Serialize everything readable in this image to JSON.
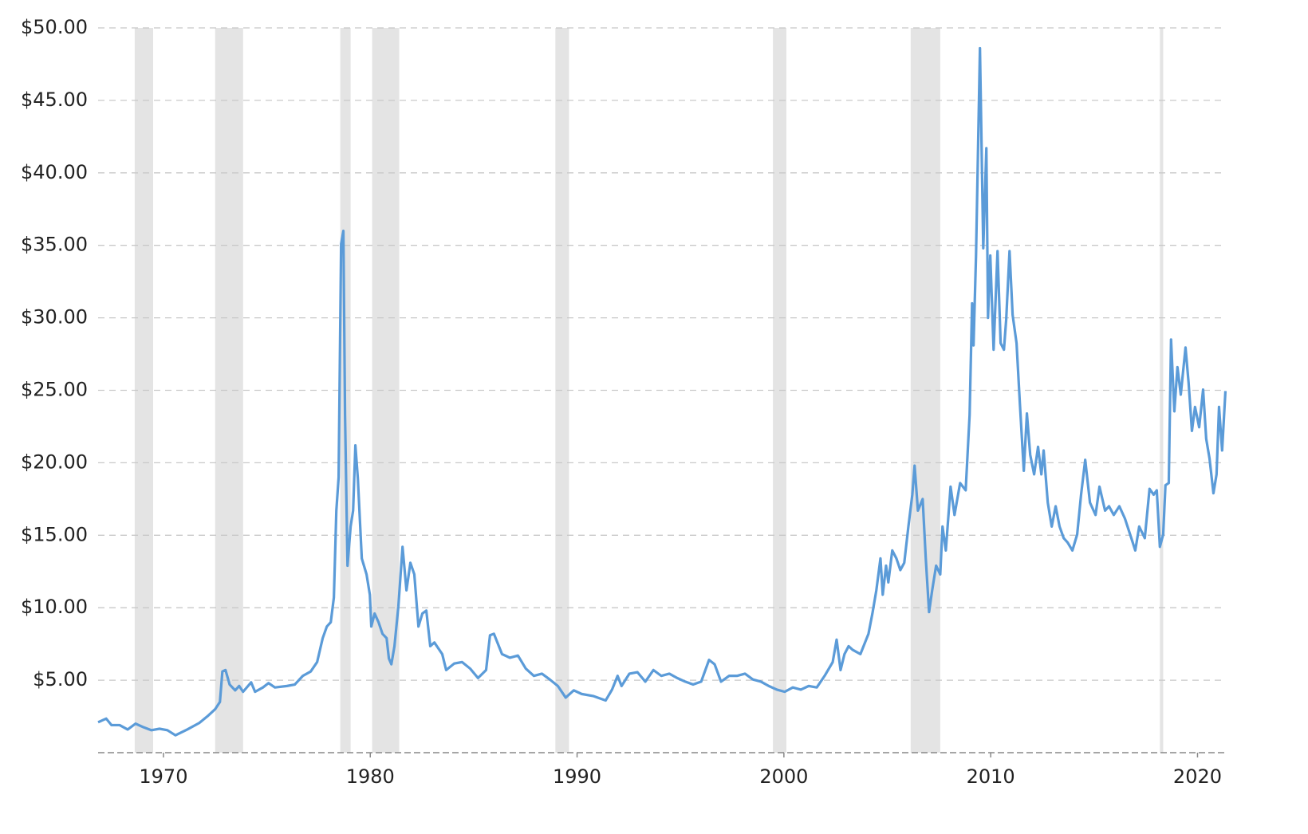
{
  "chart_data": {
    "type": "line",
    "color": "#5b9bd8",
    "band_color": "#e4e4e4",
    "grid": true,
    "xlim": [
      1966.84,
      2021.37
    ],
    "ylim": [
      0,
      50
    ],
    "xticks": [
      1970,
      1980,
      1990,
      2000,
      2010,
      2020
    ],
    "yticks": [
      {
        "value": 5,
        "label": "$5.00"
      },
      {
        "value": 10,
        "label": "$10.00"
      },
      {
        "value": 15,
        "label": "$15.00"
      },
      {
        "value": 20,
        "label": "$20.00"
      },
      {
        "value": 25,
        "label": "$25.00"
      },
      {
        "value": 30,
        "label": "$30.00"
      },
      {
        "value": 35,
        "label": "$35.00"
      },
      {
        "value": 40,
        "label": "$40.00"
      },
      {
        "value": 45,
        "label": "$45.00"
      },
      {
        "value": 50,
        "label": "$50.00"
      }
    ],
    "shaded_ranges": [
      [
        1968.61,
        1969.5
      ],
      [
        1972.5,
        1973.85
      ],
      [
        1978.55,
        1979.05
      ],
      [
        1980.09,
        1981.4
      ],
      [
        1988.95,
        1989.61
      ],
      [
        1999.47,
        2000.12
      ],
      [
        2006.13,
        2007.56
      ],
      [
        2018.18,
        2018.34
      ]
    ],
    "x": [
      1966.84,
      1967.23,
      1967.49,
      1967.88,
      1968.27,
      1968.65,
      1969.04,
      1969.42,
      1969.81,
      1970.19,
      1970.58,
      1971.15,
      1971.73,
      1972.12,
      1972.5,
      1972.73,
      1972.85,
      1973.0,
      1973.2,
      1973.47,
      1973.66,
      1973.85,
      1974.24,
      1974.43,
      1974.81,
      1975.08,
      1975.39,
      1975.97,
      1976.35,
      1976.74,
      1977.12,
      1977.43,
      1977.7,
      1977.9,
      1978.09,
      1978.24,
      1978.36,
      1978.47,
      1978.59,
      1978.7,
      1978.78,
      1978.9,
      1979.05,
      1979.17,
      1979.28,
      1979.4,
      1979.59,
      1979.82,
      1979.98,
      1980.05,
      1980.21,
      1980.4,
      1980.59,
      1980.79,
      1980.9,
      1981.02,
      1981.17,
      1981.36,
      1981.56,
      1981.75,
      1981.94,
      1982.13,
      1982.33,
      1982.52,
      1982.71,
      1982.9,
      1983.1,
      1983.48,
      1983.67,
      1984.06,
      1984.44,
      1984.83,
      1985.21,
      1985.6,
      1985.79,
      1985.98,
      1986.37,
      1986.75,
      1987.14,
      1987.52,
      1987.91,
      1988.3,
      1988.68,
      1989.07,
      1989.45,
      1989.84,
      1990.22,
      1990.8,
      1991.38,
      1991.69,
      1991.96,
      1992.15,
      1992.53,
      1992.92,
      1993.3,
      1993.69,
      1994.07,
      1994.46,
      1994.84,
      1995.23,
      1995.61,
      1996.0,
      1996.38,
      1996.65,
      1996.96,
      1997.35,
      1997.73,
      1998.12,
      1998.5,
      1998.89,
      1999.27,
      1999.66,
      2000.04,
      2000.43,
      2000.82,
      2001.2,
      2001.59,
      2001.97,
      2002.36,
      2002.55,
      2002.74,
      2002.93,
      2003.13,
      2003.32,
      2003.7,
      2004.09,
      2004.28,
      2004.47,
      2004.67,
      2004.78,
      2004.94,
      2005.05,
      2005.24,
      2005.44,
      2005.63,
      2005.82,
      2006.02,
      2006.21,
      2006.32,
      2006.48,
      2006.71,
      2006.86,
      2007.02,
      2007.17,
      2007.36,
      2007.56,
      2007.67,
      2007.83,
      2008.06,
      2008.25,
      2008.52,
      2008.79,
      2008.98,
      2009.1,
      2009.17,
      2009.29,
      2009.48,
      2009.64,
      2009.79,
      2009.87,
      2009.98,
      2010.14,
      2010.33,
      2010.48,
      2010.64,
      2010.75,
      2010.91,
      2011.06,
      2011.25,
      2011.41,
      2011.6,
      2011.75,
      2011.91,
      2012.1,
      2012.29,
      2012.45,
      2012.56,
      2012.76,
      2012.95,
      2013.14,
      2013.33,
      2013.53,
      2013.72,
      2013.95,
      2014.18,
      2014.37,
      2014.57,
      2014.8,
      2015.07,
      2015.26,
      2015.53,
      2015.72,
      2015.95,
      2016.22,
      2016.49,
      2016.8,
      2016.99,
      2017.18,
      2017.45,
      2017.68,
      2017.88,
      2018.03,
      2018.18,
      2018.34,
      2018.45,
      2018.61,
      2018.72,
      2018.88,
      2019.03,
      2019.19,
      2019.42,
      2019.57,
      2019.73,
      2019.88,
      2020.08,
      2020.27,
      2020.42,
      2020.58,
      2020.77,
      2020.92,
      2021.04,
      2021.19,
      2021.35
    ],
    "values": [
      2.1,
      2.35,
      1.9,
      1.9,
      1.6,
      2.0,
      1.75,
      1.55,
      1.65,
      1.55,
      1.2,
      1.6,
      2.05,
      2.5,
      3.0,
      3.5,
      5.6,
      5.7,
      4.7,
      4.3,
      4.6,
      4.2,
      4.85,
      4.2,
      4.5,
      4.8,
      4.5,
      4.6,
      4.7,
      5.3,
      5.6,
      6.25,
      7.9,
      8.7,
      9.0,
      10.7,
      16.7,
      19.0,
      35.1,
      36.0,
      23.3,
      12.9,
      15.6,
      16.7,
      21.2,
      18.9,
      13.4,
      12.3,
      10.9,
      8.7,
      9.6,
      9.0,
      8.2,
      7.9,
      6.5,
      6.1,
      7.35,
      10.1,
      14.2,
      11.2,
      13.1,
      12.3,
      8.7,
      9.6,
      9.8,
      7.35,
      7.6,
      6.8,
      5.7,
      6.15,
      6.25,
      5.8,
      5.15,
      5.7,
      8.1,
      8.2,
      6.8,
      6.55,
      6.7,
      5.8,
      5.3,
      5.45,
      5.05,
      4.6,
      3.8,
      4.3,
      4.05,
      3.9,
      3.6,
      4.35,
      5.3,
      4.6,
      5.45,
      5.55,
      4.9,
      5.7,
      5.3,
      5.45,
      5.15,
      4.9,
      4.7,
      4.9,
      6.4,
      6.1,
      4.9,
      5.3,
      5.3,
      5.45,
      5.05,
      4.9,
      4.6,
      4.35,
      4.2,
      4.5,
      4.35,
      4.6,
      4.5,
      5.3,
      6.25,
      7.8,
      5.7,
      6.8,
      7.35,
      7.1,
      6.8,
      8.2,
      9.6,
      11.2,
      13.4,
      10.9,
      12.9,
      11.75,
      13.95,
      13.4,
      12.6,
      13.1,
      15.6,
      17.8,
      19.8,
      16.7,
      17.5,
      13.4,
      9.7,
      11.2,
      12.9,
      12.3,
      15.6,
      13.95,
      18.35,
      16.4,
      18.6,
      18.1,
      23.3,
      31.0,
      28.1,
      34.3,
      48.6,
      34.8,
      41.7,
      30.0,
      34.3,
      27.8,
      34.6,
      28.25,
      27.8,
      29.9,
      34.6,
      30.2,
      28.25,
      24.1,
      19.45,
      23.4,
      20.55,
      19.2,
      21.1,
      19.2,
      20.85,
      17.25,
      15.6,
      17.0,
      15.6,
      14.8,
      14.5,
      13.95,
      15.05,
      17.8,
      20.2,
      17.25,
      16.4,
      18.35,
      16.7,
      17.0,
      16.4,
      17.0,
      16.15,
      14.8,
      13.95,
      15.6,
      14.8,
      18.2,
      17.8,
      18.1,
      14.2,
      15.05,
      18.45,
      18.6,
      28.5,
      23.55,
      26.6,
      24.7,
      27.95,
      25.5,
      22.2,
      23.85,
      22.45,
      25.05,
      21.65,
      20.3,
      17.9,
      19.2,
      23.85,
      20.85,
      24.95
    ]
  }
}
